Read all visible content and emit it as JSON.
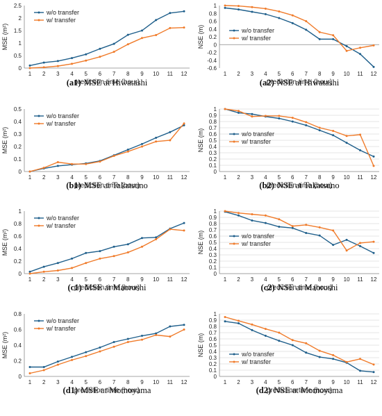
{
  "colors": {
    "blue": "#1f5f8b",
    "orange": "#f07b2a",
    "axis": "#888888",
    "grid": "#cccccc"
  },
  "chart_data": [
    {
      "id": "a1",
      "type": "line",
      "caption_id": "(a1)",
      "caption_text": "MSE at Hiwatashi",
      "xlabel": "prediction time (hour)",
      "ylabel": "MSE (m²)",
      "x": [
        1,
        2,
        3,
        4,
        5,
        6,
        7,
        8,
        9,
        10,
        11,
        12
      ],
      "ylim": [
        0,
        2.5
      ],
      "yticks": [
        0,
        0.5,
        1,
        1.5,
        2,
        2.5
      ],
      "ytick_labels": [
        "0",
        "0.5",
        "1",
        "1.5",
        "2",
        "2.5"
      ],
      "grid": false,
      "legend_position": "top-left",
      "series": [
        {
          "name": "w/o transfer",
          "color": "blue",
          "values": [
            0.1,
            0.22,
            0.28,
            0.4,
            0.55,
            0.77,
            0.97,
            1.33,
            1.5,
            1.92,
            2.2,
            2.27
          ]
        },
        {
          "name": "w/ transfer",
          "color": "orange",
          "values": [
            0.0,
            0.03,
            0.08,
            0.17,
            0.3,
            0.45,
            0.65,
            0.95,
            1.2,
            1.32,
            1.6,
            1.62
          ]
        }
      ]
    },
    {
      "id": "a2",
      "type": "line",
      "caption_id": "(a2)",
      "caption_text": "NSE at Hiwatashi",
      "xlabel": "prediction time (hour)",
      "ylabel": "NSE (m)",
      "x": [
        1,
        2,
        3,
        4,
        5,
        6,
        7,
        8,
        9,
        10,
        11,
        12
      ],
      "ylim": [
        -0.6,
        1.0
      ],
      "yticks": [
        -0.6,
        -0.4,
        -0.2,
        0,
        0.2,
        0.4,
        0.6,
        0.8,
        1
      ],
      "ytick_labels": [
        "-0.6",
        "-0.4",
        "-0.2",
        "0",
        "0.2",
        "0.4",
        "0.6",
        "0.8",
        "1"
      ],
      "grid": false,
      "legend_position": "middle-left",
      "series": [
        {
          "name": "w/o transfer",
          "color": "blue",
          "values": [
            0.94,
            0.9,
            0.84,
            0.78,
            0.68,
            0.55,
            0.38,
            0.14,
            0.14,
            -0.04,
            -0.24,
            -0.57
          ]
        },
        {
          "name": "w/ transfer",
          "color": "orange",
          "values": [
            1.0,
            0.99,
            0.96,
            0.92,
            0.85,
            0.75,
            0.6,
            0.32,
            0.24,
            -0.16,
            -0.08,
            -0.02
          ]
        }
      ]
    },
    {
      "id": "b1",
      "type": "line",
      "caption_id": "(b1)",
      "caption_text": "MSE at Takatsuno",
      "xlabel": "prediction time (hour)",
      "ylabel": "MSE (m²)",
      "x": [
        1,
        2,
        3,
        4,
        5,
        6,
        7,
        8,
        9,
        10,
        11,
        12
      ],
      "ylim": [
        0,
        0.5
      ],
      "yticks": [
        0,
        0.1,
        0.2,
        0.3,
        0.4,
        0.5
      ],
      "ytick_labels": [
        "0",
        "0.1",
        "0.2",
        "0.3",
        "0.4",
        "0.5"
      ],
      "grid": false,
      "legend_position": "top-left",
      "series": [
        {
          "name": "w/o transfer",
          "color": "blue",
          "values": [
            0.0,
            0.025,
            0.045,
            0.055,
            0.065,
            0.085,
            0.13,
            0.175,
            0.22,
            0.27,
            0.315,
            0.37
          ]
        },
        {
          "name": "w/ transfer",
          "color": "orange",
          "values": [
            0.0,
            0.03,
            0.075,
            0.06,
            0.06,
            0.08,
            0.125,
            0.16,
            0.2,
            0.24,
            0.25,
            0.385
          ]
        }
      ]
    },
    {
      "id": "b2",
      "type": "line",
      "caption_id": "(b2)",
      "caption_text": "NSE at Takatsuno",
      "xlabel": "prediction time (hour)",
      "ylabel": "NSE (m)",
      "x": [
        1,
        2,
        3,
        4,
        5,
        6,
        7,
        8,
        9,
        10,
        11,
        12
      ],
      "ylim": [
        0,
        1
      ],
      "yticks": [
        0,
        0.1,
        0.2,
        0.3,
        0.4,
        0.5,
        0.6,
        0.7,
        0.8,
        0.9,
        1
      ],
      "ytick_labels": [
        "0",
        "0.1",
        "0.2",
        "0.3",
        "0.4",
        "0.5",
        "0.6",
        "0.7",
        "0.8",
        "0.9",
        "1"
      ],
      "grid": true,
      "legend_position": "middle-left",
      "series": [
        {
          "name": "w/o transfer",
          "color": "blue",
          "values": [
            1.0,
            0.94,
            0.92,
            0.88,
            0.85,
            0.8,
            0.74,
            0.66,
            0.58,
            0.46,
            0.34,
            0.24
          ]
        },
        {
          "name": "w/ transfer",
          "color": "orange",
          "values": [
            1.0,
            0.97,
            0.88,
            0.89,
            0.89,
            0.86,
            0.79,
            0.7,
            0.65,
            0.57,
            0.59,
            0.09
          ]
        }
      ]
    },
    {
      "id": "c1",
      "type": "line",
      "caption_id": "(c1)",
      "caption_text": "MSE at Maoroshi",
      "xlabel": "prediction time (hour)",
      "ylabel": "MSE (m²)",
      "x": [
        1,
        2,
        3,
        4,
        5,
        6,
        7,
        8,
        9,
        10,
        11,
        12
      ],
      "ylim": [
        0,
        1
      ],
      "yticks": [
        0,
        0.2,
        0.4,
        0.6,
        0.8,
        1
      ],
      "ytick_labels": [
        "0",
        "0.2",
        "0.4",
        "0.6",
        "0.8",
        "1"
      ],
      "grid": false,
      "legend_position": "top-left",
      "series": [
        {
          "name": "w/o transfer",
          "color": "blue",
          "values": [
            0.03,
            0.11,
            0.17,
            0.24,
            0.33,
            0.36,
            0.43,
            0.47,
            0.57,
            0.58,
            0.72,
            0.81
          ]
        },
        {
          "name": "w/ transfer",
          "color": "orange",
          "values": [
            0.0,
            0.03,
            0.05,
            0.09,
            0.17,
            0.24,
            0.28,
            0.34,
            0.43,
            0.55,
            0.71,
            0.69
          ]
        }
      ]
    },
    {
      "id": "c2",
      "type": "line",
      "caption_id": "(c2)",
      "caption_text": "NSE at Maoroshi",
      "xlabel": "prediction time (hour)",
      "ylabel": "NSE (m)",
      "x": [
        1,
        2,
        3,
        4,
        5,
        6,
        7,
        8,
        9,
        10,
        11,
        12
      ],
      "ylim": [
        0,
        1
      ],
      "yticks": [
        0,
        0.1,
        0.2,
        0.3,
        0.4,
        0.5,
        0.6,
        0.7,
        0.8,
        0.9,
        1
      ],
      "ytick_labels": [
        "0",
        "0.1",
        "0.2",
        "0.3",
        "0.4",
        "0.5",
        "0.6",
        "0.7",
        "0.8",
        "0.9",
        "1"
      ],
      "grid": true,
      "legend_position": "middle-left",
      "series": [
        {
          "name": "w/o transfer",
          "color": "blue",
          "values": [
            0.99,
            0.93,
            0.85,
            0.81,
            0.75,
            0.73,
            0.65,
            0.61,
            0.46,
            0.54,
            0.44,
            0.33
          ]
        },
        {
          "name": "w/ transfer",
          "color": "orange",
          "values": [
            1.0,
            0.97,
            0.95,
            0.93,
            0.87,
            0.76,
            0.78,
            0.74,
            0.69,
            0.37,
            0.49,
            0.51
          ]
        }
      ]
    },
    {
      "id": "d1",
      "type": "line",
      "caption_id": "(d1)",
      "caption_text": "MSE at Momoyama",
      "xlabel": "prediction time (hour)",
      "ylabel": "MSE (m²)",
      "x": [
        1,
        2,
        3,
        4,
        5,
        6,
        7,
        8,
        9,
        10,
        11,
        12
      ],
      "ylim": [
        0,
        0.8
      ],
      "yticks": [
        0,
        0.2,
        0.4,
        0.6,
        0.8
      ],
      "ytick_labels": [
        "0",
        "0.2",
        "0.4",
        "0.6",
        "0.8"
      ],
      "grid": false,
      "legend_position": "top-left",
      "series": [
        {
          "name": "w/o transfer",
          "color": "blue",
          "values": [
            0.12,
            0.12,
            0.19,
            0.25,
            0.31,
            0.37,
            0.44,
            0.48,
            0.52,
            0.55,
            0.64,
            0.66
          ]
        },
        {
          "name": "w/ transfer",
          "color": "orange",
          "values": [
            0.04,
            0.08,
            0.15,
            0.21,
            0.26,
            0.32,
            0.38,
            0.44,
            0.47,
            0.53,
            0.51,
            0.6
          ]
        }
      ]
    },
    {
      "id": "d2",
      "type": "line",
      "caption_id": "(d2)",
      "caption_text": "NSE at Momoyama",
      "xlabel": "prediction time (hour)",
      "ylabel": "NSE (m)",
      "x": [
        1,
        2,
        3,
        4,
        5,
        6,
        7,
        8,
        9,
        10,
        11,
        12
      ],
      "ylim": [
        0,
        1
      ],
      "yticks": [
        0,
        0.1,
        0.2,
        0.3,
        0.4,
        0.5,
        0.6,
        0.7,
        0.8,
        0.9,
        1
      ],
      "ytick_labels": [
        "0",
        "0.1",
        "0.2",
        "0.3",
        "0.4",
        "0.5",
        "0.6",
        "0.7",
        "0.8",
        "0.9",
        "1"
      ],
      "grid": true,
      "legend_position": "bottom-left",
      "series": [
        {
          "name": "w/o transfer",
          "color": "blue",
          "values": [
            0.88,
            0.85,
            0.74,
            0.65,
            0.57,
            0.5,
            0.38,
            0.31,
            0.28,
            0.22,
            0.09,
            0.07
          ]
        },
        {
          "name": "w/ transfer",
          "color": "orange",
          "values": [
            0.95,
            0.89,
            0.83,
            0.76,
            0.7,
            0.58,
            0.53,
            0.41,
            0.34,
            0.23,
            0.28,
            0.19
          ]
        }
      ]
    }
  ]
}
